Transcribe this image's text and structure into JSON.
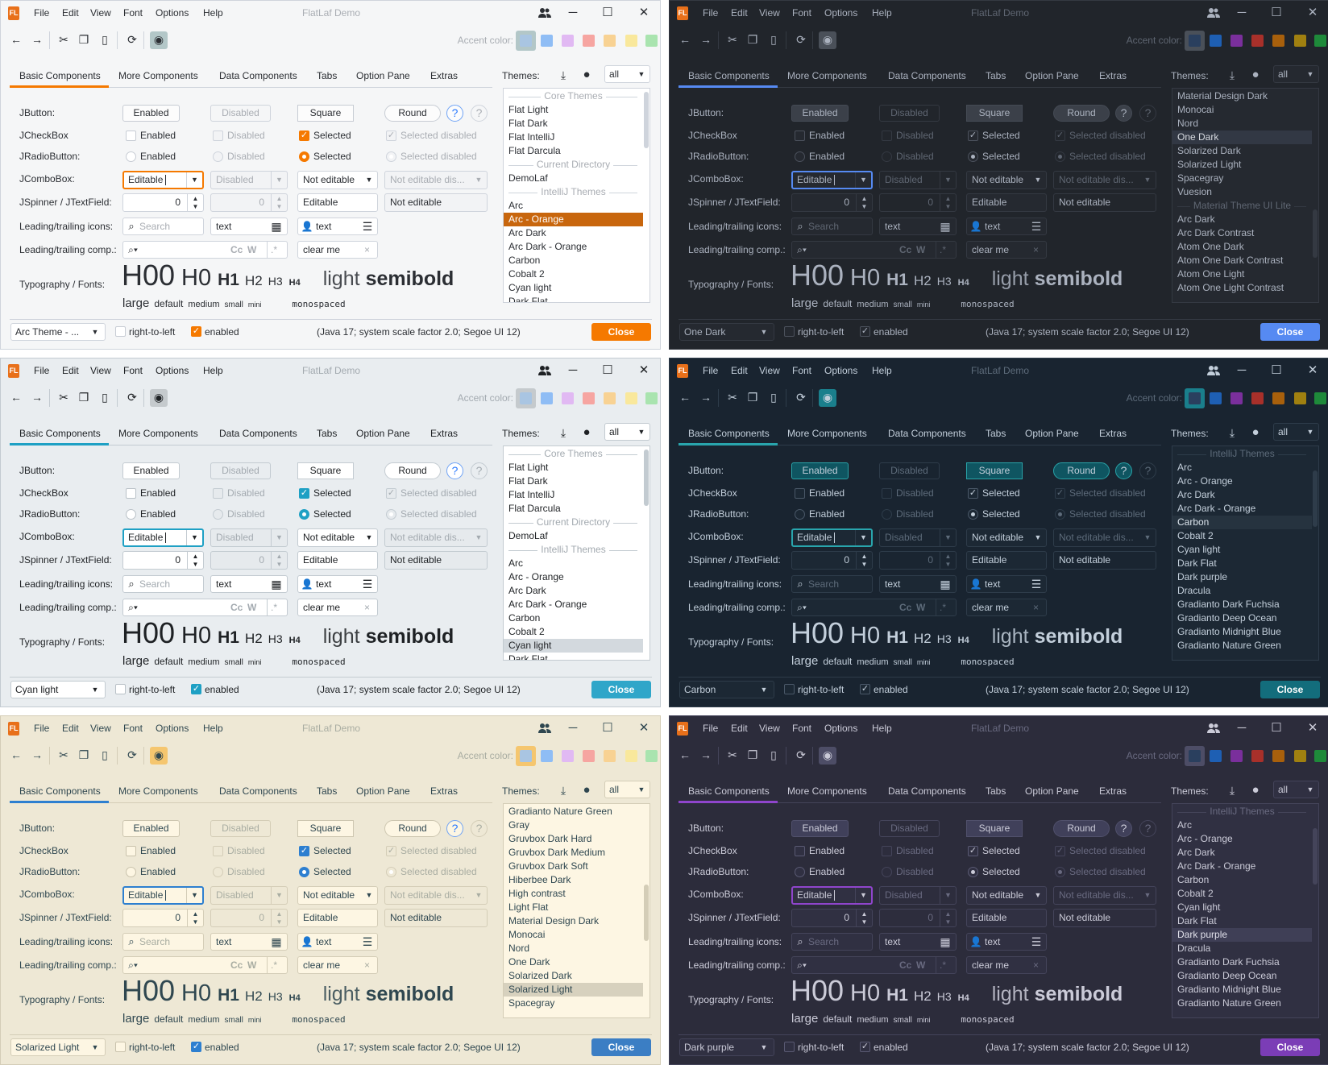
{
  "app": {
    "window_title": "FlatLaf Demo",
    "logo_text": "FL",
    "menu": [
      "File",
      "Edit",
      "View",
      "Font",
      "Options",
      "Help"
    ],
    "title_icons": [
      "users-icon",
      "minimize-icon",
      "maximize-icon",
      "close-icon"
    ],
    "toolbar_icons": [
      "back-icon",
      "forward-icon",
      "cut-icon",
      "copy-icon",
      "paste-icon",
      "refresh-icon",
      "show-toggle-icon"
    ],
    "accent_label": "Accent color:",
    "tabs": [
      "Basic Components",
      "More Components",
      "Data Components",
      "Tabs",
      "Option Pane",
      "Extras"
    ],
    "themes_label": "Themes:",
    "themes_filter": "all",
    "form": {
      "labels": [
        "JButton:",
        "JCheckBox",
        "JRadioButton:",
        "JComboBox:",
        "JSpinner / JTextField:",
        "Leading/trailing icons:",
        "Leading/trailing comp.:",
        "Typography / Fonts:"
      ],
      "buttons": [
        "Enabled",
        "Disabled",
        "Square",
        "Round",
        "?",
        "?"
      ],
      "checkboxes": [
        "Enabled",
        "Disabled",
        "Selected",
        "Selected disabled"
      ],
      "radios": [
        "Enabled",
        "Disabled",
        "Selected",
        "Selected disabled"
      ],
      "combos": [
        "Editable",
        "Disabled",
        "Not editable",
        "Not editable dis..."
      ],
      "spinner_values": [
        "0",
        "0"
      ],
      "textfields": [
        "Editable",
        "Not editable"
      ],
      "icon_fields": {
        "search_placeholder": "Search",
        "text1": "text",
        "text2": "text"
      },
      "comp_fields": {
        "case_label": "Cc",
        "word_label": "W",
        "regex_label": ".*",
        "clear_value": "clear me",
        "clear_icon": "×"
      },
      "typography": [
        "H00",
        "H0",
        "H1",
        "H2",
        "H3",
        "H4",
        "light",
        "semibold"
      ],
      "fonts": [
        "large",
        "default",
        "medium",
        "small",
        "mini",
        "monospaced"
      ]
    },
    "bottom": {
      "rtl_label": "right-to-left",
      "enabled_label": "enabled",
      "info": "(Java 17;  system scale factor 2.0; Segoe UI 12)",
      "close_label": "Close"
    },
    "swatches_light": [
      "#a9c5e2",
      "#8fbdf5",
      "#e1b9f3",
      "#f6a5a1",
      "#f8d293",
      "#f9e89c",
      "#a9e4af"
    ],
    "swatches_dark": [
      "#2a3f5e",
      "#1e5fb3",
      "#7a2f9c",
      "#a8302a",
      "#a8600c",
      "#a08010",
      "#1e8a3a"
    ]
  },
  "windows": [
    {
      "theme_combo": "Arc Theme - ...",
      "dark": false,
      "colors": {
        "bg": "#f5f6f7",
        "fg": "#2b2e33",
        "dim": "#a9adb3",
        "field": "#ffffff",
        "fieldDis": "#f2f3f5",
        "border": "#cfd4dc",
        "btn": "#fcfcfc",
        "btnBorder": "#c7ccd4",
        "chkBorder": "#c7ccd4",
        "accent": "#f57900",
        "close": "#f57900",
        "sel": "#c8660d",
        "selFg": "#ffffff",
        "toggle": "#b3c7c8"
      },
      "theme_list": [
        {
          "text": "Core Themes",
          "header": true
        },
        {
          "text": "Flat Light"
        },
        {
          "text": "Flat Dark"
        },
        {
          "text": "Flat IntelliJ"
        },
        {
          "text": "Flat Darcula"
        },
        {
          "text": "Current Directory",
          "header": true
        },
        {
          "text": "DemoLaf"
        },
        {
          "text": "IntelliJ Themes",
          "header": true
        },
        {
          "text": "Arc"
        },
        {
          "text": "Arc - Orange",
          "selected": true
        },
        {
          "text": "Arc Dark"
        },
        {
          "text": "Arc Dark - Orange"
        },
        {
          "text": "Carbon"
        },
        {
          "text": "Cobalt 2"
        },
        {
          "text": "Cyan light"
        },
        {
          "text": "Dark Flat"
        }
      ]
    },
    {
      "theme_combo": "One Dark",
      "dark": true,
      "colors": {
        "bg": "#21252b",
        "fg": "#abb2bf",
        "dim": "#5f6672",
        "field": "#252930",
        "fieldDis": "#22262c",
        "border": "#343942",
        "btn": "#3b4049",
        "btnBorder": "#454b55",
        "chkBorder": "#4b515c",
        "accent": "#568af2",
        "close": "#568af2",
        "sel": "#323844",
        "selFg": "#d7dae0",
        "toggle": "#4a5059"
      },
      "theme_list": [
        {
          "text": "Material Design Dark"
        },
        {
          "text": "Monocai"
        },
        {
          "text": "Nord"
        },
        {
          "text": "One Dark",
          "selected": true
        },
        {
          "text": "Solarized Dark"
        },
        {
          "text": "Solarized Light"
        },
        {
          "text": "Spacegray"
        },
        {
          "text": "Vuesion"
        },
        {
          "text": "Material Theme UI Lite",
          "header": true
        },
        {
          "text": "Arc Dark"
        },
        {
          "text": "Arc Dark Contrast"
        },
        {
          "text": "Atom One Dark"
        },
        {
          "text": "Atom One Dark Contrast"
        },
        {
          "text": "Atom One Light"
        },
        {
          "text": "Atom One Light Contrast"
        }
      ]
    },
    {
      "theme_combo": "Cyan light",
      "dark": false,
      "colors": {
        "bg": "#e9edf0",
        "fg": "#1e2124",
        "dim": "#a3aab0",
        "field": "#ffffff",
        "fieldDis": "#e6eaed",
        "border": "#c3cbd1",
        "btn": "#ffffff",
        "btnBorder": "#c3cbd1",
        "chkBorder": "#b9c1c7",
        "accent": "#1ea0c4",
        "close": "#2fa6c9",
        "sel": "#d3d9de",
        "selFg": "#1e2124",
        "toggle": "#c5cacd"
      },
      "theme_list": [
        {
          "text": "Core Themes",
          "header": true
        },
        {
          "text": "Flat Light"
        },
        {
          "text": "Flat Dark"
        },
        {
          "text": "Flat IntelliJ"
        },
        {
          "text": "Flat Darcula"
        },
        {
          "text": "Current Directory",
          "header": true
        },
        {
          "text": "DemoLaf"
        },
        {
          "text": "IntelliJ Themes",
          "header": true
        },
        {
          "text": "Arc"
        },
        {
          "text": "Arc - Orange"
        },
        {
          "text": "Arc Dark"
        },
        {
          "text": "Arc Dark - Orange"
        },
        {
          "text": "Carbon"
        },
        {
          "text": "Cobalt 2"
        },
        {
          "text": "Cyan light",
          "selected": true
        },
        {
          "text": "Dark Flat"
        }
      ]
    },
    {
      "theme_combo": "Carbon",
      "dark": true,
      "colors": {
        "bg": "#192430",
        "fg": "#c3cfdb",
        "dim": "#5d6b7a",
        "field": "#1c2834",
        "fieldDis": "#1a2531",
        "border": "#2e3c4a",
        "btn": "#0f5561",
        "btnBorder": "#29a3a8",
        "chkBorder": "#4a5868",
        "accent": "#29a5ad",
        "close": "#136d7c",
        "sel": "#26333f",
        "selFg": "#dbe4ec",
        "toggle": "#1a7f8c"
      },
      "theme_list": [
        {
          "text": "IntelliJ Themes",
          "header": true
        },
        {
          "text": "Arc"
        },
        {
          "text": "Arc - Orange"
        },
        {
          "text": "Arc Dark"
        },
        {
          "text": "Arc Dark - Orange"
        },
        {
          "text": "Carbon",
          "selected": true
        },
        {
          "text": "Cobalt 2"
        },
        {
          "text": "Cyan light"
        },
        {
          "text": "Dark Flat"
        },
        {
          "text": "Dark purple"
        },
        {
          "text": "Dracula"
        },
        {
          "text": "Gradianto Dark Fuchsia"
        },
        {
          "text": "Gradianto Deep Ocean"
        },
        {
          "text": "Gradianto Midnight Blue"
        },
        {
          "text": "Gradianto Nature Green"
        }
      ]
    },
    {
      "theme_combo": "Solarized Light",
      "dark": false,
      "colors": {
        "bg": "#eee8d5",
        "fg": "#2f4750",
        "dim": "#a9ada2",
        "field": "#fdf6e3",
        "fieldDis": "#eee8d5",
        "border": "#d4cdb7",
        "btn": "#fdf6e3",
        "btnBorder": "#cdc6b0",
        "chkBorder": "#c9c2ac",
        "accent": "#2d7fd0",
        "close": "#3b7ec4",
        "sel": "#d7d1be",
        "selFg": "#2f4750",
        "toggle": "#f5c66f"
      },
      "theme_list": [
        {
          "text": "Gradianto Nature Green"
        },
        {
          "text": "Gray"
        },
        {
          "text": "Gruvbox Dark Hard"
        },
        {
          "text": "Gruvbox Dark Medium"
        },
        {
          "text": "Gruvbox Dark Soft"
        },
        {
          "text": "Hiberbee Dark"
        },
        {
          "text": "High contrast"
        },
        {
          "text": "Light Flat"
        },
        {
          "text": "Material Design Dark"
        },
        {
          "text": "Monocai"
        },
        {
          "text": "Nord"
        },
        {
          "text": "One Dark"
        },
        {
          "text": "Solarized Dark"
        },
        {
          "text": "Solarized Light",
          "selected": true
        },
        {
          "text": "Spacegray"
        }
      ]
    },
    {
      "theme_combo": "Dark purple",
      "dark": true,
      "colors": {
        "bg": "#2c2c3b",
        "fg": "#cbcbd8",
        "dim": "#696a80",
        "field": "#303042",
        "fieldDis": "#2d2d3d",
        "border": "#44445a",
        "btn": "#40405a",
        "btnBorder": "#50506b",
        "chkBorder": "#5a5a73",
        "accent": "#8f45cc",
        "close": "#7b3db6",
        "sel": "#3f3f56",
        "selFg": "#e0e0ea",
        "toggle": "#4d4d66"
      },
      "theme_list": [
        {
          "text": "IntelliJ Themes",
          "header": true
        },
        {
          "text": "Arc"
        },
        {
          "text": "Arc - Orange"
        },
        {
          "text": "Arc Dark"
        },
        {
          "text": "Arc Dark - Orange"
        },
        {
          "text": "Carbon"
        },
        {
          "text": "Cobalt 2"
        },
        {
          "text": "Cyan light"
        },
        {
          "text": "Dark Flat"
        },
        {
          "text": "Dark purple",
          "selected": true
        },
        {
          "text": "Dracula"
        },
        {
          "text": "Gradianto Dark Fuchsia"
        },
        {
          "text": "Gradianto Deep Ocean"
        },
        {
          "text": "Gradianto Midnight Blue"
        },
        {
          "text": "Gradianto Nature Green"
        }
      ]
    }
  ]
}
